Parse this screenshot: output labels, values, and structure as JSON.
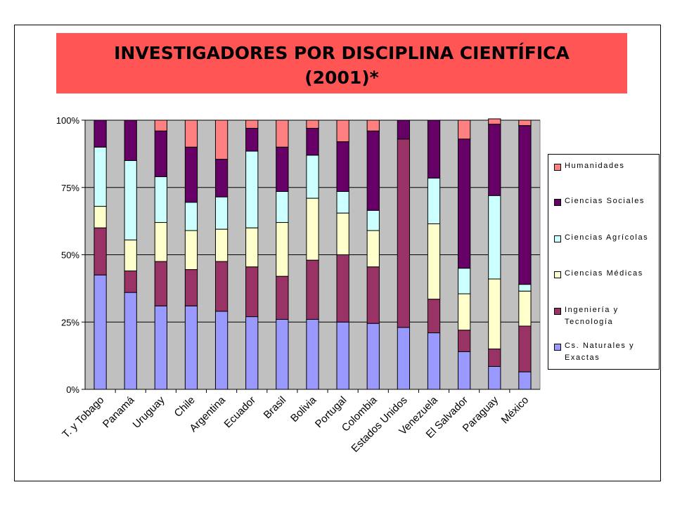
{
  "title": {
    "line1": "INVESTIGADORES POR DISCIPLINA CIENTÍFICA",
    "line2": "(2001)*"
  },
  "colors": {
    "title_bg": "#ff5555",
    "plot_bg": "#c0c0c0"
  },
  "chart_data": {
    "type": "bar",
    "stacked": true,
    "percent": true,
    "ylim": [
      0,
      100
    ],
    "yticks": [
      "0%",
      "25%",
      "50%",
      "75%",
      "100%"
    ],
    "grid": true,
    "legend_position": "right",
    "categories": [
      "T. y Tobago",
      "Panamá",
      "Uruguay",
      "Chile",
      "Argentina",
      "Ecuador",
      "Brasil",
      "Bolivia",
      "Portugal",
      "Colombia",
      "Estados Unidos",
      "Venezuela",
      "El Salvador",
      "Paraguay",
      "México"
    ],
    "series": [
      {
        "name": "Cs. Naturales y Exactas",
        "color": "#9999ff",
        "values": [
          42.5,
          36,
          31,
          31,
          29,
          27,
          26,
          26,
          25,
          24.5,
          23,
          21,
          14,
          8.5,
          6.5
        ]
      },
      {
        "name": "Ingeniería y Tecnología",
        "color": "#993366",
        "values": [
          17.5,
          8,
          16.5,
          13.5,
          18.5,
          18.5,
          16,
          22,
          25,
          21,
          70,
          12.5,
          8,
          6.5,
          17
        ]
      },
      {
        "name": "Ciencias Médicas",
        "color": "#ffffcc",
        "values": [
          8,
          11.5,
          14.5,
          14.5,
          12,
          14.5,
          20,
          23,
          15.5,
          13.5,
          0,
          28,
          13.5,
          26,
          13
        ]
      },
      {
        "name": "Ciencias Agrícolas",
        "color": "#ccffff",
        "values": [
          22,
          29.5,
          17,
          10.5,
          12,
          28.5,
          11.5,
          16,
          8,
          7.5,
          0,
          17,
          9.5,
          31,
          2.5
        ]
      },
      {
        "name": "Ciencias Sociales",
        "color": "#660066",
        "values": [
          10,
          15,
          17,
          20.5,
          14,
          8.5,
          16.5,
          10,
          18.5,
          29.5,
          7,
          21.5,
          48,
          26.5,
          59
        ]
      },
      {
        "name": "Humanidades",
        "color": "#ff8080",
        "values": [
          0,
          0,
          4,
          10,
          14.5,
          3,
          10,
          3,
          8,
          4,
          0,
          0,
          7,
          2,
          2
        ]
      }
    ]
  },
  "legend": {
    "items": [
      {
        "label": "Humanidades",
        "color": "#ff8080"
      },
      {
        "label": "Ciencias Sociales",
        "color": "#660066"
      },
      {
        "label": "Ciencias Agrícolas",
        "color": "#ccffff"
      },
      {
        "label": "Ciencias Médicas",
        "color": "#ffffcc"
      },
      {
        "label": "Ingeniería y Tecnología",
        "color": "#993366"
      },
      {
        "label": "Cs. Naturales y Exactas",
        "color": "#9999ff"
      }
    ]
  }
}
